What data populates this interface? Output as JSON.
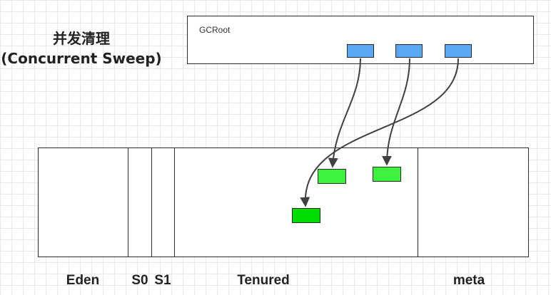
{
  "title": {
    "line1": "并发清理",
    "line2": "(Concurrent Sweep)"
  },
  "gcroot": {
    "label": "GCRoot"
  },
  "regions": {
    "eden": "Eden",
    "s0": "S0",
    "s1": "S1",
    "tenured": "Tenured",
    "meta": "meta"
  },
  "colors": {
    "root_ref": "#5aa8f5",
    "object_light": "#3cf23c",
    "object_dark": "#00dd00",
    "border": "#2b2b2b",
    "arrow": "#404040"
  }
}
